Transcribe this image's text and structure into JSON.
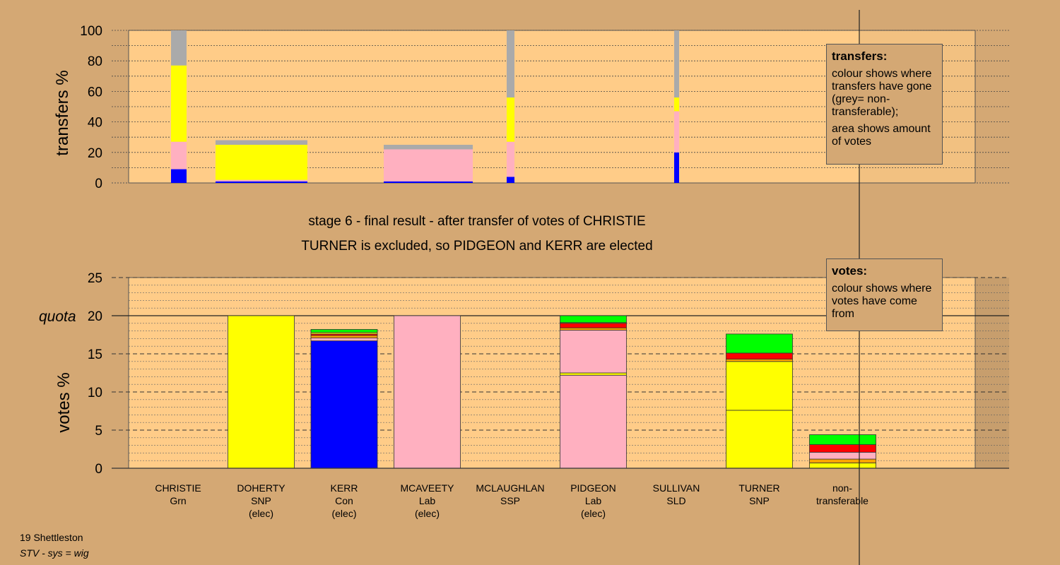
{
  "page": {
    "constituency": "19 Shettleston",
    "system": "STV - sys = wig"
  },
  "titles": {
    "stage": "stage 6 - final result - after transfer of votes of CHRISTIE",
    "outcome": "TURNER is excluded, so PIDGEON and KERR are elected"
  },
  "legends": {
    "transfers": {
      "title": "transfers:",
      "line1": "colour shows where transfers have gone (grey= non-transferable);",
      "line2": "area shows amount of votes"
    },
    "votes": {
      "title": "votes:",
      "line1": "colour shows where votes have come from"
    }
  },
  "colors": {
    "background": "#d4a874",
    "plot_background": "#ffcc88",
    "Con": "#0000ff",
    "Lab": "#ffb0c0",
    "SNP": "#ffff00",
    "SSP": "#ff0000",
    "Grn": "#00ff00",
    "SLD": "#ffa500",
    "non-transferable": "#aaaaaa"
  },
  "chart_data": [
    {
      "id": "transfers",
      "type": "bar",
      "stacked": true,
      "title": "",
      "ylabel": "transfers %",
      "ylim": [
        0,
        100
      ],
      "yticks": [
        0,
        20,
        40,
        60,
        80,
        100
      ],
      "grid": true,
      "legend": "top-right",
      "bars": [
        {
          "stage": 1,
          "segments": [
            {
              "color": "Con",
              "value": 9
            },
            {
              "color": "Lab",
              "value": 18
            },
            {
              "color": "SNP",
              "value": 50
            },
            {
              "color": "non-transferable",
              "value": 23
            }
          ]
        },
        {
          "stage": 2,
          "segments": [
            {
              "color": "Con",
              "value": 1
            },
            {
              "color": "Lab",
              "value": 1
            },
            {
              "color": "SNP",
              "value": 23
            },
            {
              "color": "non-transferable",
              "value": 3
            }
          ]
        },
        {
          "stage": 3,
          "segments": [
            {
              "color": "Con",
              "value": 1
            },
            {
              "color": "Lab",
              "value": 21
            },
            {
              "color": "non-transferable",
              "value": 3
            }
          ]
        },
        {
          "stage": 4,
          "segments": [
            {
              "color": "Con",
              "value": 4
            },
            {
              "color": "Lab",
              "value": 23
            },
            {
              "color": "SNP",
              "value": 29
            },
            {
              "color": "non-transferable",
              "value": 44
            }
          ]
        },
        {
          "stage": 5,
          "segments": [
            {
              "color": "Con",
              "value": 20
            },
            {
              "color": "Lab",
              "value": 27
            },
            {
              "color": "SNP",
              "value": 9
            },
            {
              "color": "non-transferable",
              "value": 44
            }
          ]
        }
      ]
    },
    {
      "id": "votes",
      "type": "bar",
      "stacked": true,
      "title": "",
      "ylabel": "votes %",
      "ylim": [
        0,
        25
      ],
      "yticks": [
        0,
        5,
        10,
        15,
        20,
        25
      ],
      "quota": 20,
      "quota_label": "quota",
      "grid": true,
      "legend": "top-right",
      "categories": [
        {
          "name": "CHRISTIE",
          "party": "Grn",
          "status": ""
        },
        {
          "name": "DOHERTY",
          "party": "SNP",
          "status": "(elec)"
        },
        {
          "name": "KERR",
          "party": "Con",
          "status": "(elec)"
        },
        {
          "name": "MCAVEETY",
          "party": "Lab",
          "status": "(elec)"
        },
        {
          "name": "MCLAUGHLAN",
          "party": "SSP",
          "status": ""
        },
        {
          "name": "PIDGEON",
          "party": "Lab",
          "status": "(elec)"
        },
        {
          "name": "SULLIVAN",
          "party": "SLD",
          "status": ""
        },
        {
          "name": "TURNER",
          "party": "SNP",
          "status": ""
        },
        {
          "name": "non-",
          "party": "transferable",
          "status": ""
        }
      ],
      "stacks": [
        [],
        [
          {
            "color": "SNP",
            "value": 20
          }
        ],
        [
          {
            "color": "Con",
            "value": 16.7
          },
          {
            "color": "Lab",
            "value": 0.4
          },
          {
            "color": "SLD",
            "value": 0.3
          },
          {
            "color": "SSP",
            "value": 0.2
          },
          {
            "color": "SNP",
            "value": 0.2
          },
          {
            "color": "Grn",
            "value": 0.4
          }
        ],
        [
          {
            "color": "Lab",
            "value": 20
          }
        ],
        [],
        [
          {
            "color": "Lab",
            "value": 12.2
          },
          {
            "color": "SNP",
            "value": 0.3
          },
          {
            "color": "Lab",
            "value": 5.6
          },
          {
            "color": "SLD",
            "value": 0.3
          },
          {
            "color": "SSP",
            "value": 0.6
          },
          {
            "color": "SLD",
            "value": 0.1
          },
          {
            "color": "Grn",
            "value": 0.9
          }
        ],
        [],
        [
          {
            "color": "SNP",
            "value": 7.6
          },
          {
            "color": "SNP",
            "value": 6.4
          },
          {
            "color": "SLD",
            "value": 0.3
          },
          {
            "color": "SSP",
            "value": 0.8
          },
          {
            "color": "Grn",
            "value": 2.5
          }
        ],
        [
          {
            "color": "SNP",
            "value": 0.7
          },
          {
            "color": "SLD",
            "value": 0.5
          },
          {
            "color": "Lab",
            "value": 0.9
          },
          {
            "color": "SSP",
            "value": 1.0
          },
          {
            "color": "Grn",
            "value": 1.3
          }
        ]
      ]
    }
  ]
}
